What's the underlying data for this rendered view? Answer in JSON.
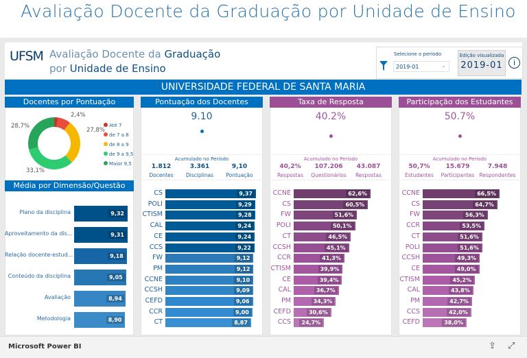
{
  "page_title": "Avaliação Docente da Graduação por Unidade de Ensino",
  "report": {
    "logo": "UFSM",
    "title_l1_a": "Avaliação Docente da ",
    "title_l1_b": "Graduação",
    "title_l2_a": "por ",
    "title_l2_b": "Unidade de Ensino",
    "filter_label": "Selecione o período",
    "period_value": "2019-01",
    "edition_label": "Edição visualizada",
    "edition_value": "2019-01",
    "banner": "UNIVERSIDADE FEDERAL DE SANTA MARIA"
  },
  "colors": {
    "blue": "#0070c0",
    "purple": "#9c4f96"
  },
  "donut": {
    "title": "Docentes por Pontuação",
    "slices": [
      {
        "label": "Até 7",
        "value": 2.4,
        "text": "2,4%",
        "color": "#c0392b"
      },
      {
        "label": "de 7 a 8",
        "value": 7.9,
        "text": "",
        "color": "#e84c3d"
      },
      {
        "label": "de 8 a 9",
        "value": 27.8,
        "text": "27,8%",
        "color": "#f5b800"
      },
      {
        "label": "de 9 a 9,5",
        "value": 33.1,
        "text": "33,1%",
        "color": "#2ecc71"
      },
      {
        "label": "Maior 9,5",
        "value": 28.7,
        "text": "28,7%",
        "color": "#27a55a"
      }
    ]
  },
  "dimension": {
    "title": "Média por Dimensão/Questão",
    "items": [
      {
        "label": "Plano da disciplina",
        "value": 9.32,
        "text": "9,32"
      },
      {
        "label": "Aproveitamento da dis...",
        "value": 9.31,
        "text": "9,31"
      },
      {
        "label": "Relação docente-estud...",
        "value": 9.18,
        "text": "9,18"
      },
      {
        "label": "Conteúdo da disciplina",
        "value": 9.05,
        "text": "9,05"
      },
      {
        "label": "Avaliação",
        "value": 8.94,
        "text": "8,94"
      },
      {
        "label": "Metodologia",
        "value": 8.9,
        "text": "8,90"
      }
    ]
  },
  "panels": [
    {
      "title": "Pontuação dos Docentes",
      "big": "9.10",
      "acc": "Acumulado no Período",
      "kpis": [
        {
          "v": "1.812",
          "l": "Docentes"
        },
        {
          "v": "3.361",
          "l": "Disciplinas"
        },
        {
          "v": "9,10",
          "l": "Pontuação"
        }
      ],
      "bars": [
        [
          "CS",
          9.37,
          "9,37"
        ],
        [
          "POLI",
          9.29,
          "9,29"
        ],
        [
          "CTISM",
          9.28,
          "9,28"
        ],
        [
          "CAL",
          9.24,
          "9,24"
        ],
        [
          "CE",
          9.24,
          "9,24"
        ],
        [
          "CCS",
          9.22,
          "9,22"
        ],
        [
          "FW",
          9.12,
          "9,12"
        ],
        [
          "PM",
          9.12,
          "9,12"
        ],
        [
          "CCNE",
          9.1,
          "9,10"
        ],
        [
          "CCSH",
          9.09,
          "9,09"
        ],
        [
          "CEFD",
          9.06,
          "9,06"
        ],
        [
          "CCR",
          9.0,
          "9,00"
        ],
        [
          "CT",
          8.87,
          "8,87"
        ]
      ]
    },
    {
      "title": "Taxa de Resposta",
      "big": "40.2%",
      "acc": "Acumulado no Período",
      "kpis": [
        {
          "v": "40,2%",
          "l": "Respostas"
        },
        {
          "v": "107.206",
          "l": "Questionários"
        },
        {
          "v": "43.087",
          "l": "Respostas"
        }
      ],
      "bars": [
        [
          "CCNE",
          62.6,
          "62,6%"
        ],
        [
          "CS",
          60.5,
          "60,5%"
        ],
        [
          "FW",
          51.6,
          "51,6%"
        ],
        [
          "POLI",
          50.1,
          "50,1%"
        ],
        [
          "CT",
          46.5,
          "46,5%"
        ],
        [
          "CCSH",
          45.1,
          "45,1%"
        ],
        [
          "CCR",
          41.3,
          "41,3%"
        ],
        [
          "CTISM",
          39.9,
          "39,9%"
        ],
        [
          "CE",
          39.4,
          "39,4%"
        ],
        [
          "CAL",
          36.7,
          "36,7%"
        ],
        [
          "PM",
          34.3,
          "34,3%"
        ],
        [
          "CEFD",
          30.6,
          "30,6%"
        ],
        [
          "CCS",
          24.7,
          "24,7%"
        ]
      ]
    },
    {
      "title": "Participação dos Estudantes",
      "big": "50.7%",
      "acc": "Acumulado no Período",
      "kpis": [
        {
          "v": "50,7%",
          "l": "Estudantes"
        },
        {
          "v": "15.679",
          "l": "Participantes"
        },
        {
          "v": "7.948",
          "l": "Respondentes"
        }
      ],
      "bars": [
        [
          "CCNE",
          66.5,
          "66,5%"
        ],
        [
          "CS",
          64.7,
          "64,7%"
        ],
        [
          "FW",
          56.3,
          "56,3%"
        ],
        [
          "CCR",
          53.5,
          "53,5%"
        ],
        [
          "CT",
          51.6,
          "51,6%"
        ],
        [
          "POLI",
          51.6,
          "51,6%"
        ],
        [
          "CCSH",
          49.3,
          "49,3%"
        ],
        [
          "CE",
          49.0,
          "49,0%"
        ],
        [
          "CTISM",
          45.2,
          "45,2%"
        ],
        [
          "CAL",
          43.8,
          "43,8%"
        ],
        [
          "PM",
          42.7,
          "42,7%"
        ],
        [
          "CCS",
          42.0,
          "42,0%"
        ],
        [
          "CEFD",
          38.0,
          "38,0%"
        ]
      ]
    }
  ],
  "footer": {
    "brand": "Microsoft Power BI"
  }
}
